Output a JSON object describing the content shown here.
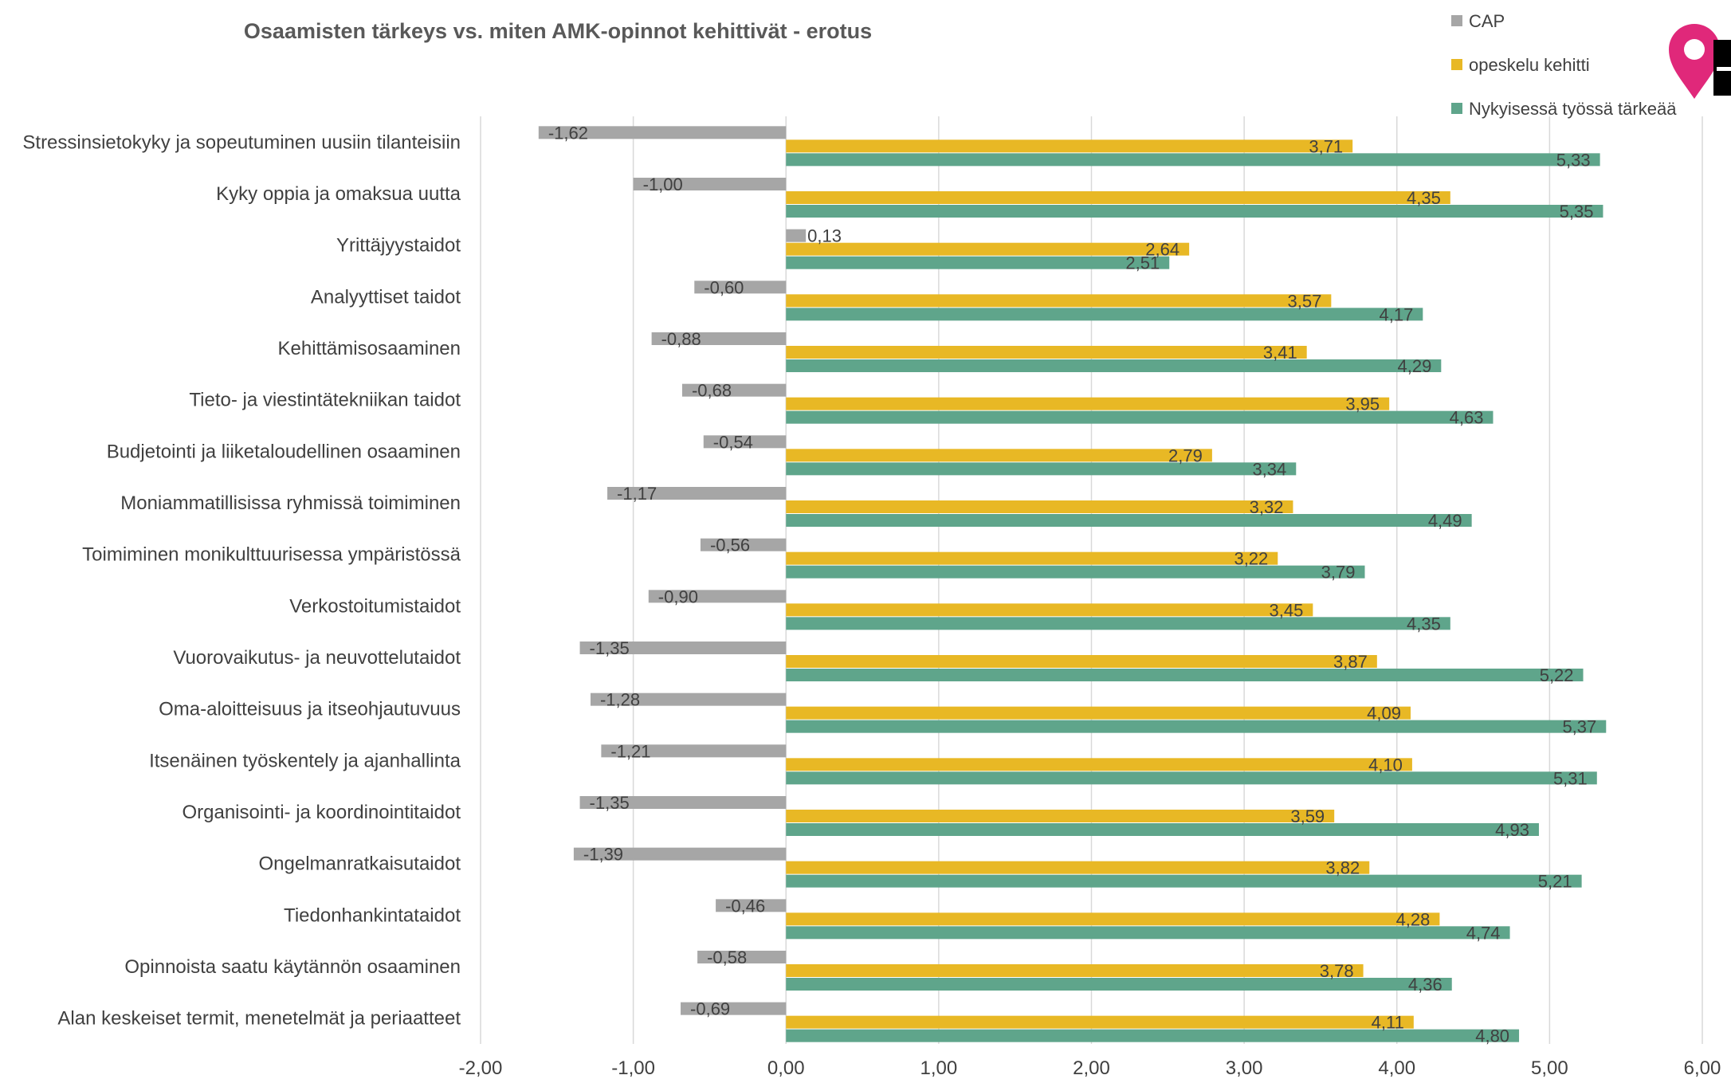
{
  "chart_data": {
    "type": "bar",
    "orientation": "horizontal",
    "title": "Osaamisten tärkeys vs. miten AMK-opinnot kehittivät - erotus",
    "xlabel": "",
    "ylabel": "",
    "xlim": [
      -2,
      6
    ],
    "x_ticks": [
      "-2,00",
      "-1,00",
      "0,00",
      "1,00",
      "2,00",
      "3,00",
      "4,00",
      "5,00",
      "6,00"
    ],
    "grid": "vertical",
    "legend_position": "top-right",
    "categories": [
      "Stressinsietokyky ja sopeutuminen uusiin tilanteisiin",
      "Kyky oppia ja omaksua uutta",
      "Yrittäjyystaidot",
      "Analyyttiset taidot",
      "Kehittämisosaaminen",
      "Tieto- ja viestintätekniikan taidot",
      "Budjetointi ja liiketaloudellinen osaaminen",
      "Moniammatillisissa ryhmissä toimiminen",
      "Toimiminen monikulttuurisessa ympäristössä",
      "Verkostoitumistaidot",
      "Vuorovaikutus- ja neuvottelutaidot",
      "Oma-aloitteisuus ja itseohjautuvuus",
      "Itsenäinen työskentely ja ajanhallinta",
      "Organisointi- ja koordinointitaidot",
      "Ongelmanratkaisutaidot",
      "Tiedonhankintataidot",
      "Opinnoista saatu käytännön osaaminen",
      "Alan keskeiset termit, menetelmät ja periaatteet"
    ],
    "series": [
      {
        "name": "CAP",
        "color": "#a6a6a6",
        "values": [
          -1.62,
          -1.0,
          0.13,
          -0.6,
          -0.88,
          -0.68,
          -0.54,
          -1.17,
          -0.56,
          -0.9,
          -1.35,
          -1.28,
          -1.21,
          -1.35,
          -1.39,
          -0.46,
          -0.58,
          -0.69
        ],
        "labels": [
          "-1,62",
          "-1,00",
          "0,13",
          "-0,60",
          "-0,88",
          "-0,68",
          "-0,54",
          "-1,17",
          "-0,56",
          "-0,90",
          "-1,35",
          "-1,28",
          "-1,21",
          "-1,35",
          "-1,39",
          "-0,46",
          "-0,58",
          "-0,69"
        ]
      },
      {
        "name": "opeskelu kehitti",
        "color": "#e8b825",
        "values": [
          3.71,
          4.35,
          2.64,
          3.57,
          3.41,
          3.95,
          2.79,
          3.32,
          3.22,
          3.45,
          3.87,
          4.09,
          4.1,
          3.59,
          3.82,
          4.28,
          3.78,
          4.11
        ],
        "labels": [
          "3,71",
          "4,35",
          "2,64",
          "3,57",
          "3,41",
          "3,95",
          "2,79",
          "3,32",
          "3,22",
          "3,45",
          "3,87",
          "4,09",
          "4,10",
          "3,59",
          "3,82",
          "4,28",
          "3,78",
          "4,11"
        ]
      },
      {
        "name": "Nykyisessä työssä tärkeää",
        "color": "#5fa58b",
        "values": [
          5.33,
          5.35,
          2.51,
          4.17,
          4.29,
          4.63,
          3.34,
          4.49,
          3.79,
          4.35,
          5.22,
          5.37,
          5.31,
          4.93,
          5.21,
          4.74,
          4.36,
          4.8
        ],
        "labels": [
          "5,33",
          "5,35",
          "2,51",
          "4,17",
          "4,29",
          "4,63",
          "3,34",
          "4,49",
          "3,79",
          "4,35",
          "5,22",
          "5,37",
          "5,31",
          "4,93",
          "5,21",
          "4,74",
          "4,36",
          "4,80"
        ]
      }
    ]
  },
  "logo": {
    "letters": "AT",
    "pin_color": "#e0287a",
    "letter_color": "#000000"
  }
}
